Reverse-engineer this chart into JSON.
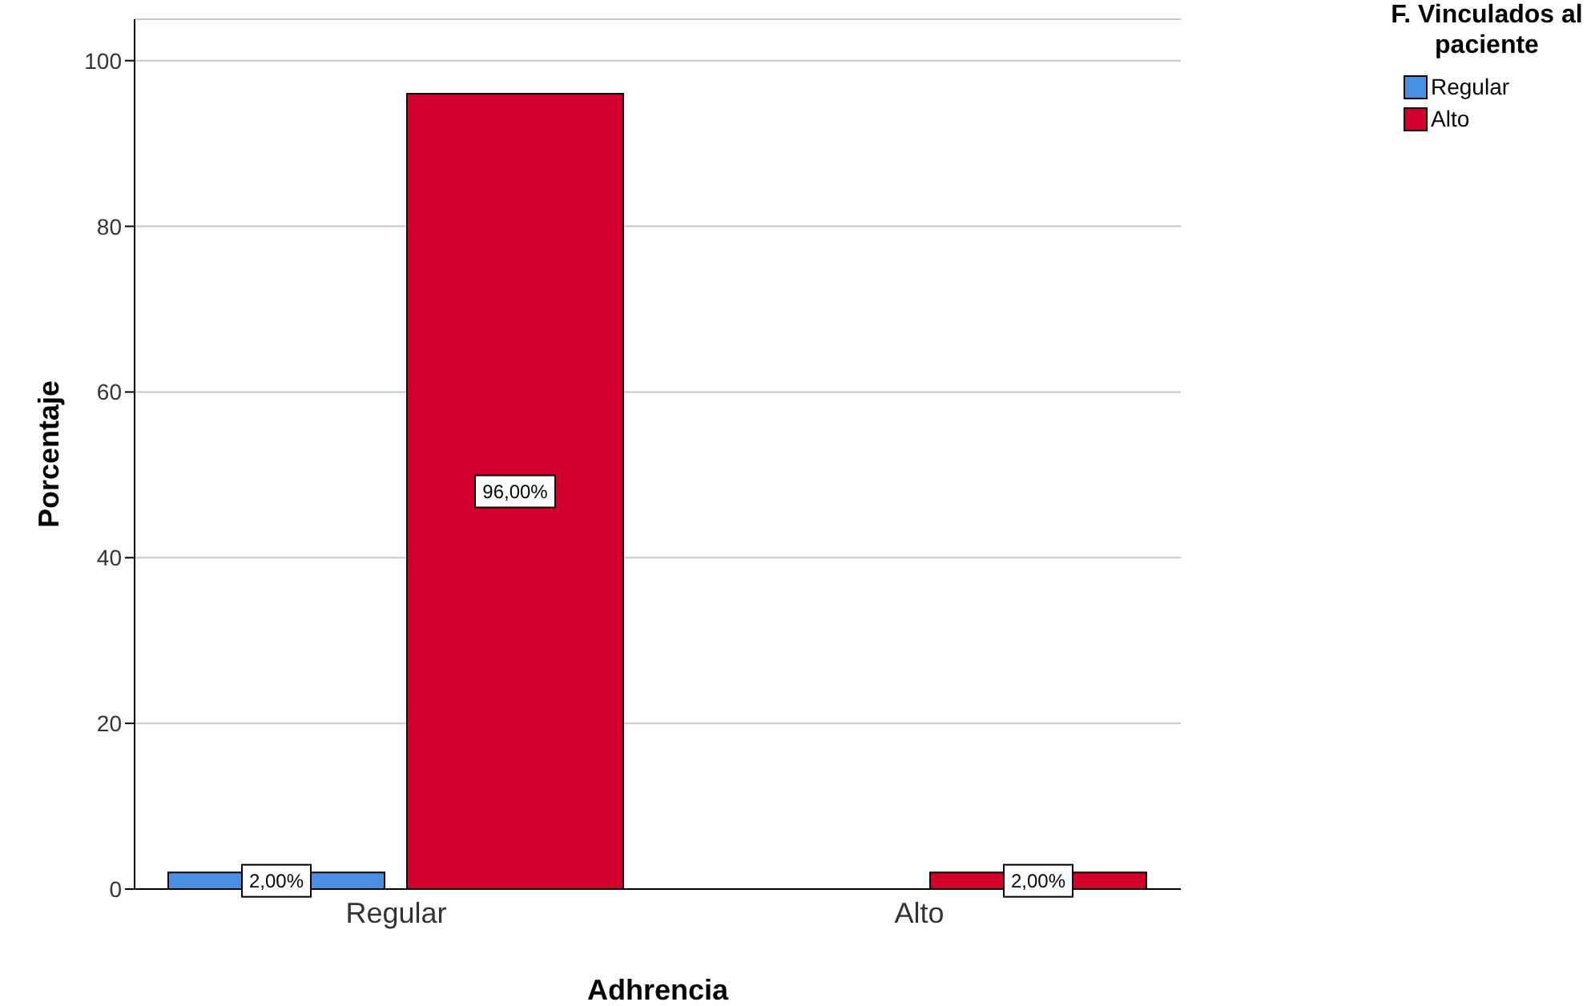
{
  "chart_data": {
    "type": "bar",
    "xlabel": "Adhrencia",
    "ylabel": "Porcentaje",
    "legend_title": "F. Vinculados al paciente",
    "categories": [
      "Regular",
      "Alto"
    ],
    "series": [
      {
        "name": "Regular",
        "color": "#4a90e2",
        "values": [
          2,
          null
        ],
        "value_labels": [
          "2,00%",
          null
        ]
      },
      {
        "name": "Alto",
        "color": "#d2002d",
        "values": [
          96,
          2
        ],
        "value_labels": [
          "96,00%",
          "2,00%"
        ]
      }
    ],
    "ylim": [
      0,
      105
    ],
    "yticks": [
      0,
      20,
      40,
      60,
      80,
      100
    ],
    "grid": "y",
    "legend": "top right"
  }
}
